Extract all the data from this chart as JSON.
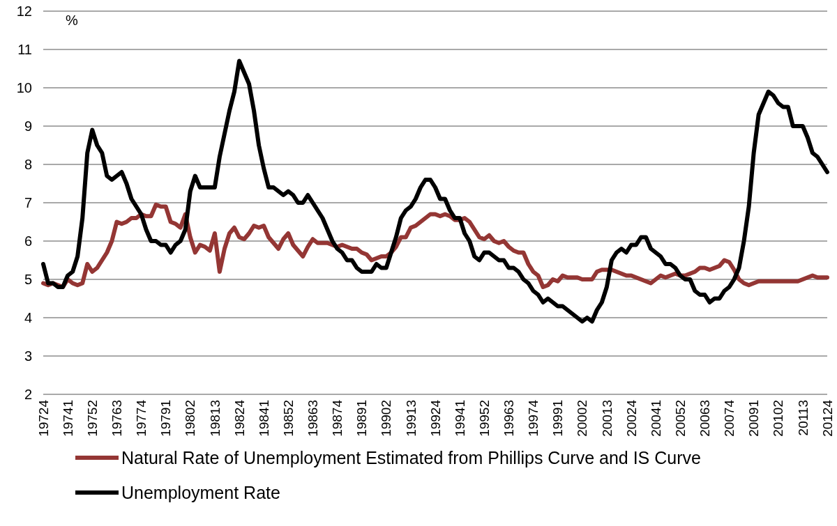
{
  "chart_data": {
    "type": "line",
    "ylabel": "%",
    "categories": [
      "19724",
      null,
      null,
      null,
      null,
      "19741",
      null,
      null,
      null,
      null,
      "19752",
      null,
      null,
      null,
      null,
      "19763",
      null,
      null,
      null,
      null,
      "19774",
      null,
      null,
      null,
      null,
      "19791",
      null,
      null,
      null,
      null,
      "19802",
      null,
      null,
      null,
      null,
      "19813",
      null,
      null,
      null,
      null,
      "19824",
      null,
      null,
      null,
      null,
      "19841",
      null,
      null,
      null,
      null,
      "19852",
      null,
      null,
      null,
      null,
      "19863",
      null,
      null,
      null,
      null,
      "19874",
      null,
      null,
      null,
      null,
      "19891",
      null,
      null,
      null,
      null,
      "19902",
      null,
      null,
      null,
      null,
      "19913",
      null,
      null,
      null,
      null,
      "19924",
      null,
      null,
      null,
      null,
      "19941",
      null,
      null,
      null,
      null,
      "19952",
      null,
      null,
      null,
      null,
      "19963",
      null,
      null,
      null,
      null,
      "19974",
      null,
      null,
      null,
      null,
      "19991",
      null,
      null,
      null,
      null,
      "20002",
      null,
      null,
      null,
      null,
      "20013",
      null,
      null,
      null,
      null,
      "20024",
      null,
      null,
      null,
      null,
      "20041",
      null,
      null,
      null,
      null,
      "20052",
      null,
      null,
      null,
      null,
      "20063",
      null,
      null,
      null,
      null,
      "20074",
      null,
      null,
      null,
      null,
      "20091",
      null,
      null,
      null,
      null,
      "20102",
      null,
      null,
      null,
      null,
      "20113",
      null,
      null,
      null,
      null,
      "20124"
    ],
    "series": [
      {
        "name": "Natural Rate of Unemployment Estimated from Phillips Curve and IS Curve",
        "color": "#943634",
        "values": [
          4.9,
          4.85,
          4.9,
          4.85,
          4.8,
          5.0,
          4.9,
          4.85,
          4.9,
          5.4,
          5.2,
          5.3,
          5.5,
          5.7,
          6.0,
          6.5,
          6.45,
          6.5,
          6.6,
          6.6,
          6.7,
          6.65,
          6.65,
          6.95,
          6.9,
          6.9,
          6.5,
          6.45,
          6.35,
          6.7,
          6.1,
          5.7,
          5.9,
          5.85,
          5.75,
          6.2,
          5.2,
          5.8,
          6.2,
          6.35,
          6.1,
          6.05,
          6.2,
          6.4,
          6.35,
          6.4,
          6.1,
          5.95,
          5.8,
          6.05,
          6.2,
          5.9,
          5.75,
          5.6,
          5.85,
          6.05,
          5.95,
          5.95,
          5.95,
          5.9,
          5.85,
          5.9,
          5.85,
          5.8,
          5.8,
          5.7,
          5.65,
          5.5,
          5.55,
          5.6,
          5.6,
          5.7,
          5.85,
          6.1,
          6.1,
          6.35,
          6.4,
          6.5,
          6.6,
          6.7,
          6.7,
          6.65,
          6.7,
          6.65,
          6.55,
          6.55,
          6.6,
          6.5,
          6.3,
          6.1,
          6.05,
          6.15,
          6.0,
          5.95,
          6.0,
          5.85,
          5.75,
          5.7,
          5.7,
          5.4,
          5.2,
          5.1,
          4.8,
          4.85,
          5.0,
          4.95,
          5.1,
          5.05,
          5.05,
          5.05,
          5.0,
          5.0,
          5.0,
          5.2,
          5.25,
          5.25,
          5.25,
          5.2,
          5.15,
          5.1,
          5.1,
          5.05,
          5.0,
          4.95,
          4.9,
          5.0,
          5.1,
          5.05,
          5.1,
          5.15,
          5.1,
          5.1,
          5.15,
          5.2,
          5.3,
          5.3,
          5.25,
          5.3,
          5.35,
          5.5,
          5.45,
          5.25,
          5.0,
          4.9,
          4.85,
          4.9,
          4.95,
          4.95,
          4.95,
          4.95,
          4.95,
          4.95,
          4.95,
          4.95,
          4.95,
          5.0,
          5.05,
          5.1,
          5.05,
          5.05,
          5.05
        ]
      },
      {
        "name": "Unemployment Rate",
        "color": "#000000",
        "values": [
          5.4,
          4.9,
          4.9,
          4.8,
          4.8,
          5.1,
          5.2,
          5.6,
          6.6,
          8.3,
          8.9,
          8.5,
          8.3,
          7.7,
          7.6,
          7.7,
          7.8,
          7.5,
          7.1,
          6.9,
          6.7,
          6.3,
          6.0,
          6.0,
          5.9,
          5.9,
          5.7,
          5.9,
          6.0,
          6.3,
          7.3,
          7.7,
          7.4,
          7.4,
          7.4,
          7.4,
          8.2,
          8.8,
          9.4,
          9.9,
          10.7,
          10.4,
          10.1,
          9.4,
          8.5,
          7.9,
          7.4,
          7.4,
          7.3,
          7.2,
          7.3,
          7.2,
          7.0,
          7.0,
          7.2,
          7.0,
          6.8,
          6.6,
          6.3,
          6.0,
          5.8,
          5.7,
          5.5,
          5.5,
          5.3,
          5.2,
          5.2,
          5.2,
          5.4,
          5.3,
          5.3,
          5.7,
          6.1,
          6.6,
          6.8,
          6.9,
          7.1,
          7.4,
          7.6,
          7.6,
          7.4,
          7.1,
          7.1,
          6.8,
          6.6,
          6.6,
          6.2,
          6.0,
          5.6,
          5.5,
          5.7,
          5.7,
          5.6,
          5.5,
          5.5,
          5.3,
          5.3,
          5.2,
          5.0,
          4.9,
          4.7,
          4.6,
          4.4,
          4.5,
          4.4,
          4.3,
          4.3,
          4.2,
          4.1,
          4.0,
          3.9,
          4.0,
          3.9,
          4.2,
          4.4,
          4.8,
          5.5,
          5.7,
          5.8,
          5.7,
          5.9,
          5.9,
          6.1,
          6.1,
          5.8,
          5.7,
          5.6,
          5.4,
          5.4,
          5.3,
          5.1,
          5.0,
          5.0,
          4.7,
          4.6,
          4.6,
          4.4,
          4.5,
          4.5,
          4.7,
          4.8,
          5.0,
          5.3,
          6.0,
          6.9,
          8.3,
          9.3,
          9.6,
          9.9,
          9.8,
          9.6,
          9.5,
          9.5,
          9.0,
          9.0,
          9.0,
          8.7,
          8.3,
          8.2,
          8.0,
          7.8
        ]
      }
    ],
    "ylim": [
      2,
      12
    ],
    "yticks": [
      2,
      3,
      4,
      5,
      6,
      7,
      8,
      9,
      10,
      11,
      12
    ],
    "grid": "y",
    "legend": "bottom",
    "line_style": "solid",
    "marker": "none"
  }
}
